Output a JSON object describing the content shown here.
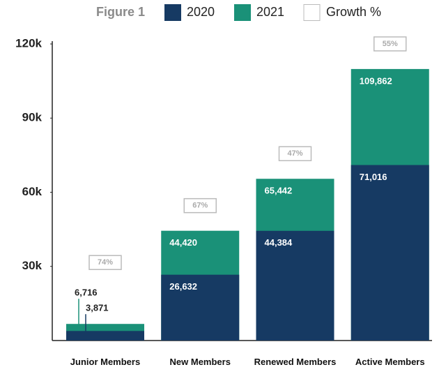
{
  "chart_data": {
    "type": "bar",
    "title": "Figure 1",
    "categories": [
      "Junior Members",
      "New Members",
      "Renewed Members",
      "Active Members"
    ],
    "series": [
      {
        "name": "2020",
        "color": "#163a63",
        "values": [
          3871,
          26632,
          44384,
          71016
        ],
        "value_labels": [
          "3,871",
          "26,632",
          "44,384",
          "71,016"
        ]
      },
      {
        "name": "2021",
        "color": "#1a9178",
        "values": [
          6716,
          44420,
          65442,
          109862
        ],
        "value_labels": [
          "6,716",
          "44,420",
          "65,442",
          "109,862"
        ]
      }
    ],
    "growth": {
      "name": "Growth %",
      "values": [
        74,
        67,
        47,
        55
      ],
      "value_labels": [
        "74%",
        "67%",
        "47%",
        "55%"
      ]
    },
    "ylim": [
      0,
      120000
    ],
    "yticks": [
      {
        "value": 30000,
        "label": "30k"
      },
      {
        "value": 60000,
        "label": "60k"
      },
      {
        "value": 90000,
        "label": "90k"
      },
      {
        "value": 120000,
        "label": "120k"
      }
    ]
  }
}
